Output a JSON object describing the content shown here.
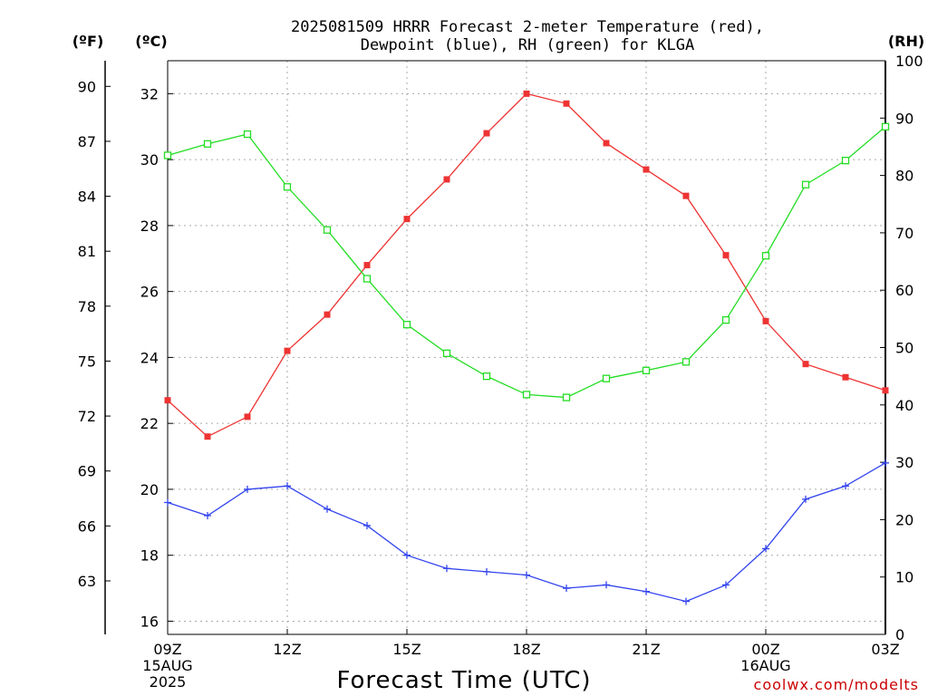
{
  "chart_data": {
    "type": "line",
    "title_lines": [
      "2025081509 HRRR Forecast 2-meter Temperature (red),",
      "Dewpoint (blue), RH (green) for KLGA"
    ],
    "axes": {
      "left_f": {
        "unit": "(ºF)",
        "ticks": [
          63,
          66,
          69,
          72,
          75,
          78,
          81,
          84,
          87,
          90
        ]
      },
      "left_c": {
        "unit": "(ºC)",
        "ticks": [
          16,
          18,
          20,
          22,
          24,
          26,
          28,
          30,
          32
        ],
        "ylim": [
          15.6,
          33.0
        ]
      },
      "right_rh": {
        "unit": "(RH)",
        "ticks": [
          0,
          10,
          20,
          30,
          40,
          50,
          60,
          70,
          80,
          90,
          100
        ],
        "ylim": [
          0,
          100
        ]
      }
    },
    "xlabel": "Forecast Time (UTC)",
    "x_hours": [
      0,
      1,
      2,
      3,
      4,
      5,
      6,
      7,
      8,
      9,
      10,
      11,
      12,
      13,
      14,
      15,
      16,
      17,
      18
    ],
    "x_ticks": [
      {
        "hour": 0,
        "lines": [
          "09Z",
          "15AUG",
          "2025"
        ]
      },
      {
        "hour": 3,
        "lines": [
          "12Z"
        ]
      },
      {
        "hour": 6,
        "lines": [
          "15Z"
        ]
      },
      {
        "hour": 9,
        "lines": [
          "18Z"
        ]
      },
      {
        "hour": 12,
        "lines": [
          "21Z"
        ]
      },
      {
        "hour": 15,
        "lines": [
          "00Z",
          "16AUG"
        ]
      },
      {
        "hour": 18,
        "lines": [
          "03Z"
        ]
      }
    ],
    "grid": true,
    "series": [
      {
        "name": "Temperature",
        "axis": "left_c",
        "color": "#ee3333",
        "marker": "filled-square",
        "values": [
          22.7,
          21.6,
          22.2,
          24.2,
          25.3,
          26.8,
          28.2,
          29.4,
          30.8,
          32.0,
          31.7,
          30.5,
          29.7,
          28.9,
          27.1,
          25.1,
          23.8,
          23.4,
          23.0
        ]
      },
      {
        "name": "Dewpoint",
        "axis": "left_c",
        "color": "#3344ee",
        "marker": "plus",
        "values": [
          19.6,
          19.2,
          20.0,
          20.1,
          19.4,
          18.9,
          18.0,
          17.6,
          17.5,
          17.4,
          17.0,
          17.1,
          16.9,
          16.6,
          17.1,
          18.2,
          19.7,
          20.1,
          20.8
        ]
      },
      {
        "name": "RH",
        "axis": "right_rh",
        "color": "#22dd22",
        "marker": "open-square",
        "values": [
          83.5,
          85.5,
          87.2,
          78.0,
          70.5,
          62.0,
          54.0,
          49.0,
          45.0,
          41.8,
          41.3,
          44.6,
          46.0,
          47.5,
          54.8,
          66.0,
          78.4,
          82.6,
          88.5
        ]
      }
    ]
  },
  "watermark": "coolwx.com/modelts"
}
